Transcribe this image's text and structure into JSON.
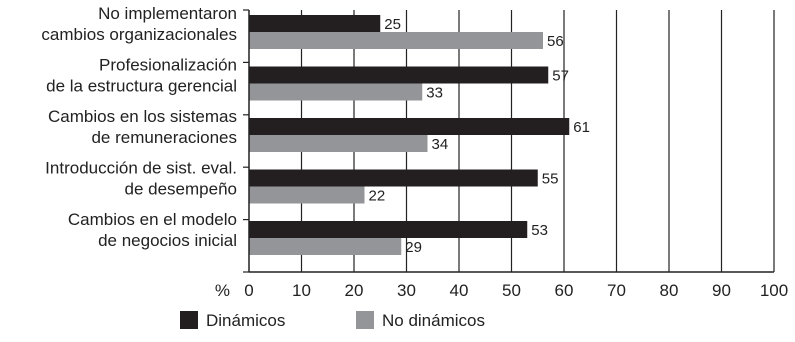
{
  "chart_data": {
    "type": "bar",
    "orientation": "horizontal",
    "categories": [
      [
        "No implementaron",
        "cambios organizacionales"
      ],
      [
        "Profesionalización",
        "de la estructura gerencial"
      ],
      [
        "Cambios en los sistemas",
        "de remuneraciones"
      ],
      [
        "Introducción de sist. eval.",
        "de desempeño"
      ],
      [
        "Cambios en el modelo",
        "de negocios inicial"
      ]
    ],
    "series": [
      {
        "name": "Dinámicos",
        "color": "#231f20",
        "values": [
          25,
          57,
          61,
          55,
          53
        ]
      },
      {
        "name": "No dinámicos",
        "color": "#939598",
        "values": [
          56,
          33,
          34,
          22,
          29
        ]
      }
    ],
    "xlabel": "%",
    "xlim": [
      0,
      100
    ],
    "xticks": [
      0,
      10,
      20,
      30,
      40,
      50,
      60,
      70,
      80,
      90,
      100
    ],
    "grid": "vertical",
    "legend": "bottom",
    "data_labels": true
  }
}
